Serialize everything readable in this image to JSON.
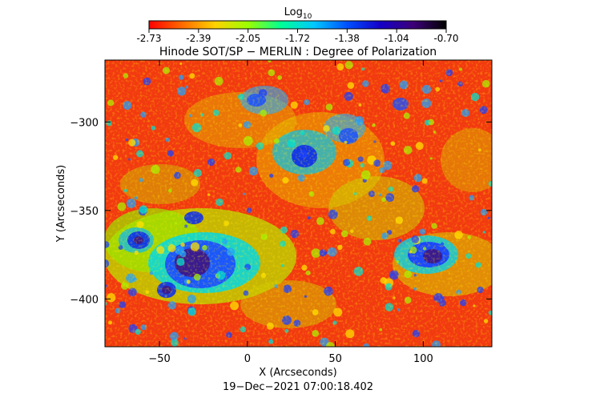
{
  "colorbar": {
    "title_main": "Log",
    "title_sub": "10",
    "ticks": [
      "-2.73",
      "-2.39",
      "-2.05",
      "-1.72",
      "-1.38",
      "-1.04",
      "-0.70"
    ],
    "range": [
      -2.73,
      -0.7
    ],
    "colors": [
      "#ff0000",
      "#ff6a00",
      "#ffd200",
      "#9bff00",
      "#00ff96",
      "#00c8ff",
      "#0050ff",
      "#1400c8",
      "#3c0078",
      "#000000"
    ]
  },
  "plot": {
    "title": "Hinode SOT/SP − MERLIN : Degree of Polarization",
    "xlabel": "X (Arcseconds)",
    "ylabel": "Y (Arcseconds)",
    "xticks": [
      {
        "value": -50,
        "label": "−50"
      },
      {
        "value": 0,
        "label": "0"
      },
      {
        "value": 50,
        "label": "50"
      },
      {
        "value": 100,
        "label": "100"
      }
    ],
    "yticks": [
      {
        "value": -300,
        "label": "−300"
      },
      {
        "value": -350,
        "label": "−350"
      },
      {
        "value": -400,
        "label": "−400"
      }
    ],
    "xrange": [
      -81,
      139
    ],
    "yrange": [
      -427,
      -265
    ],
    "timestamp": "19−Dec−2021 07:00:18.402"
  }
}
